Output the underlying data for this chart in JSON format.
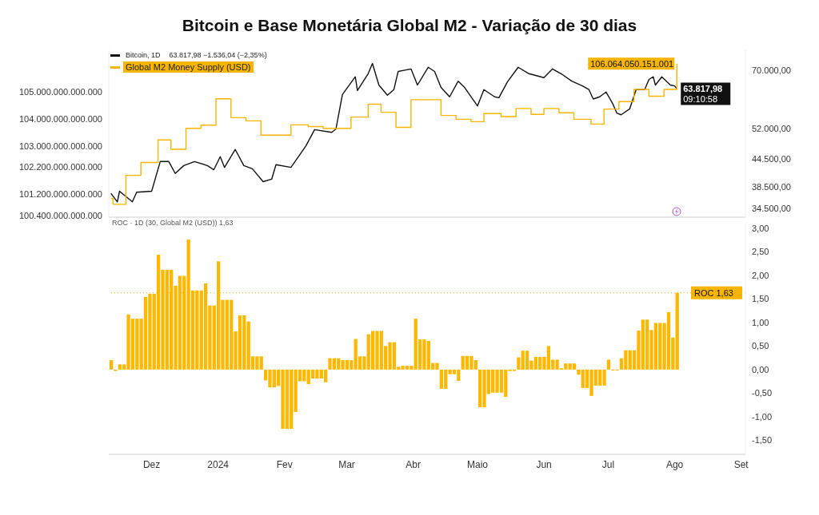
{
  "chart_data": [
    {
      "type": "line",
      "title": "Bitcoin e Base Monetária Global M2 - Variação de 30 dias",
      "annotations": [
        "63.817,98 −1.536,04 (−2,35%)",
        "09:10:58"
      ],
      "series": [
        {
          "name": "Bitcoin, 1D",
          "color": "#111111",
          "axis": "y2",
          "x": [
            "2023-11-12",
            "2023-11-15",
            "2023-11-16",
            "2023-11-22",
            "2023-11-24",
            "2023-12-01",
            "2023-12-05",
            "2023-12-09",
            "2023-12-12",
            "2023-12-16",
            "2023-12-21",
            "2023-12-27",
            "2023-12-30",
            "2024-01-02",
            "2024-01-04",
            "2024-01-09",
            "2024-01-13",
            "2024-01-17",
            "2024-01-22",
            "2024-01-26",
            "2024-01-28",
            "2024-02-04",
            "2024-02-11",
            "2024-02-15",
            "2024-02-23",
            "2024-02-25",
            "2024-02-28",
            "2024-03-05",
            "2024-03-06",
            "2024-03-11",
            "2024-03-13",
            "2024-03-16",
            "2024-03-20",
            "2024-03-23",
            "2024-03-25",
            "2024-03-31",
            "2024-04-03",
            "2024-04-08",
            "2024-04-11",
            "2024-04-14",
            "2024-04-18",
            "2024-04-22",
            "2024-04-25",
            "2024-05-01",
            "2024-05-04",
            "2024-05-09",
            "2024-05-11",
            "2024-05-15",
            "2024-05-20",
            "2024-05-25",
            "2024-06-01",
            "2024-06-05",
            "2024-06-09",
            "2024-06-14",
            "2024-06-19",
            "2024-06-22",
            "2024-06-24",
            "2024-06-27",
            "2024-06-30",
            "2024-07-03",
            "2024-07-05",
            "2024-07-07",
            "2024-07-11",
            "2024-07-14",
            "2024-07-18",
            "2024-07-20",
            "2024-07-22",
            "2024-07-23",
            "2024-07-26",
            "2024-07-30",
            "2024-08-01",
            "2024-08-02"
          ],
          "values": [
            37300,
            35700,
            37700,
            35700,
            37500,
            37700,
            43900,
            43900,
            41300,
            43000,
            43900,
            43000,
            42100,
            45000,
            42600,
            46700,
            43000,
            42300,
            39600,
            40100,
            43200,
            42600,
            47600,
            51700,
            51000,
            51900,
            61900,
            67800,
            63200,
            68900,
            72600,
            65000,
            61700,
            63500,
            69700,
            70600,
            65000,
            71200,
            69700,
            64200,
            61200,
            66300,
            64200,
            58400,
            63500,
            61200,
            60900,
            66100,
            71200,
            68900,
            67500,
            70600,
            68900,
            66300,
            64700,
            63500,
            60500,
            61200,
            62700,
            59200,
            56300,
            55800,
            57500,
            63500,
            63500,
            66900,
            67800,
            65000,
            67800,
            65000,
            64700,
            63817.98
          ],
          "value_labels": [
            null,
            null,
            null,
            null,
            null,
            null,
            null,
            null,
            null,
            null,
            null,
            null,
            null,
            null,
            null,
            null,
            null,
            null,
            null,
            null,
            null,
            null,
            null,
            null,
            null,
            null,
            null,
            null,
            null,
            null,
            null,
            null,
            null,
            null,
            null,
            null,
            null,
            null,
            null,
            null,
            null,
            null,
            null,
            null,
            null,
            null,
            null,
            null,
            null,
            null,
            null,
            null,
            null,
            null,
            null,
            null,
            null,
            null,
            null,
            null,
            null,
            null,
            null,
            null,
            null,
            null,
            null,
            null,
            null,
            null,
            null,
            "63.817,98"
          ]
        },
        {
          "name": "Global M2 Money Supply (USD)",
          "color": "#f7b500",
          "type": "step",
          "x": [
            "2023-11-12",
            "2023-11-13",
            "2023-11-19",
            "2023-11-26",
            "2023-12-04",
            "2023-12-10",
            "2023-12-17",
            "2023-12-24",
            "2023-12-31",
            "2024-01-07",
            "2024-01-14",
            "2024-01-21",
            "2024-02-04",
            "2024-02-12",
            "2024-02-19",
            "2024-03-03",
            "2024-03-11",
            "2024-03-17",
            "2024-03-24",
            "2024-03-31",
            "2024-04-14",
            "2024-04-21",
            "2024-04-28",
            "2024-05-04",
            "2024-05-12",
            "2024-05-19",
            "2024-05-26",
            "2024-06-01",
            "2024-06-08",
            "2024-06-15",
            "2024-06-23",
            "2024-06-29",
            "2024-07-06",
            "2024-07-13",
            "2024-07-20",
            "2024-07-27",
            "2024-08-02"
          ],
          "values": [
            101040000000000,
            100820000000000,
            101900000000000,
            102380000000000,
            103220000000000,
            102870000000000,
            103650000000000,
            103770000000000,
            104750000000000,
            104050000000000,
            103930000000000,
            103400000000000,
            103780000000000,
            103720000000000,
            103650000000000,
            104070000000000,
            104550000000000,
            104250000000000,
            103690000000000,
            104720000000000,
            104130000000000,
            103990000000000,
            103900000000000,
            104200000000000,
            104090000000000,
            104390000000000,
            104170000000000,
            104390000000000,
            104230000000000,
            103990000000000,
            103810000000000,
            104370000000000,
            104650000000000,
            105100000000000,
            104850000000000,
            105100000000000,
            106064050151001
          ],
          "value_labels": [
            null,
            null,
            null,
            null,
            null,
            null,
            null,
            null,
            null,
            null,
            null,
            null,
            null,
            null,
            null,
            null,
            null,
            null,
            null,
            null,
            null,
            null,
            null,
            null,
            null,
            null,
            null,
            null,
            null,
            null,
            null,
            null,
            null,
            null,
            null,
            null,
            "106.064.050.151.001"
          ]
        }
      ],
      "xlim": [
        "2023-11-11",
        "2024-09-03"
      ],
      "ylim": [
        100340000000000,
        106590000000000
      ],
      "yticks": [
        {
          "value": 100400000000000,
          "label": "100.400.000.000.000"
        },
        {
          "value": 101200000000000,
          "label": "101.200.000.000.000"
        },
        {
          "value": 102200000000000,
          "label": "102.200.000.000.000"
        },
        {
          "value": 103000000000000,
          "label": "103.000.000.000.000"
        },
        {
          "value": 104000000000000,
          "label": "104.000.000.000.000"
        },
        {
          "value": 105000000000000,
          "label": "105.000.000.000.000"
        }
      ],
      "y2lim": [
        33000,
        78000
      ],
      "y2ticks": [
        {
          "value": 34500,
          "label": "34.500,00"
        },
        {
          "value": 38500,
          "label": "38.500,00"
        },
        {
          "value": 44500,
          "label": "44.500,00"
        },
        {
          "value": 52000,
          "label": "52.000,00"
        },
        {
          "value": 70000,
          "label": "70.000,00"
        }
      ],
      "log": "y2",
      "legend": "top left",
      "tick_labels": "y"
    },
    {
      "type": "bar",
      "title": "ROC · 1D (30, Global M2 (USD)) 1,63",
      "x": [
        "2023-11-12",
        "2023-11-14",
        "2023-11-16",
        "2023-11-18",
        "2023-11-20",
        "2023-11-22",
        "2023-11-24",
        "2023-11-26",
        "2023-11-28",
        "2023-11-30",
        "2023-12-02",
        "2023-12-04",
        "2023-12-06",
        "2023-12-08",
        "2023-12-10",
        "2023-12-12",
        "2023-12-14",
        "2023-12-16",
        "2023-12-18",
        "2023-12-20",
        "2023-12-22",
        "2023-12-24",
        "2023-12-26",
        "2023-12-28",
        "2023-12-30",
        "2024-01-01",
        "2024-01-03",
        "2024-01-05",
        "2024-01-07",
        "2024-01-09",
        "2024-01-11",
        "2024-01-13",
        "2024-01-15",
        "2024-01-17",
        "2024-01-19",
        "2024-01-21",
        "2024-01-23",
        "2024-01-25",
        "2024-01-27",
        "2024-01-29",
        "2024-01-31",
        "2024-02-02",
        "2024-02-04",
        "2024-02-06",
        "2024-02-08",
        "2024-02-10",
        "2024-02-12",
        "2024-02-14",
        "2024-02-16",
        "2024-02-18",
        "2024-02-20",
        "2024-02-22",
        "2024-02-24",
        "2024-02-26",
        "2024-02-28",
        "2024-03-01",
        "2024-03-03",
        "2024-03-05",
        "2024-03-07",
        "2024-03-09",
        "2024-03-11",
        "2024-03-13",
        "2024-03-15",
        "2024-03-17",
        "2024-03-19",
        "2024-03-21",
        "2024-03-23",
        "2024-03-25",
        "2024-03-27",
        "2024-03-29",
        "2024-03-31",
        "2024-04-02",
        "2024-04-04",
        "2024-04-06",
        "2024-04-08",
        "2024-04-10",
        "2024-04-12",
        "2024-04-14",
        "2024-04-16",
        "2024-04-18",
        "2024-04-20",
        "2024-04-22",
        "2024-04-24",
        "2024-04-26",
        "2024-04-28",
        "2024-04-30",
        "2024-05-02",
        "2024-05-04",
        "2024-05-06",
        "2024-05-08",
        "2024-05-10",
        "2024-05-12",
        "2024-05-14",
        "2024-05-16",
        "2024-05-18",
        "2024-05-20",
        "2024-05-22",
        "2024-05-24",
        "2024-05-26",
        "2024-05-28",
        "2024-05-30",
        "2024-06-01",
        "2024-06-03",
        "2024-06-05",
        "2024-06-07",
        "2024-06-09",
        "2024-06-11",
        "2024-06-13",
        "2024-06-15",
        "2024-06-17",
        "2024-06-19",
        "2024-06-21",
        "2024-06-23",
        "2024-06-25",
        "2024-06-27",
        "2024-06-29",
        "2024-07-01",
        "2024-07-03",
        "2024-07-05",
        "2024-07-07",
        "2024-07-09",
        "2024-07-11",
        "2024-07-13",
        "2024-07-15",
        "2024-07-17",
        "2024-07-19",
        "2024-07-21",
        "2024-07-23",
        "2024-07-25",
        "2024-07-27",
        "2024-07-29",
        "2024-07-31",
        "2024-08-02"
      ],
      "series": [
        {
          "color": "#ffb800",
          "axis": "y2",
          "values": [
            0.2,
            -0.03,
            0.11,
            0.11,
            1.17,
            1.08,
            1.08,
            1.08,
            1.54,
            1.61,
            1.61,
            2.44,
            2.12,
            2.12,
            2.12,
            1.78,
            1.99,
            1.99,
            2.76,
            1.68,
            1.68,
            1.68,
            1.83,
            1.36,
            1.36,
            2.3,
            1.48,
            1.48,
            1.48,
            0.81,
            1.15,
            1.15,
            1.02,
            0.28,
            0.28,
            0.28,
            -0.23,
            -0.38,
            -0.38,
            -0.35,
            -1.26,
            -1.26,
            -1.26,
            -0.9,
            -0.25,
            -0.25,
            -0.31,
            -0.19,
            -0.19,
            -0.19,
            -0.27,
            0.24,
            0.24,
            0.24,
            0.2,
            0.2,
            0.2,
            0.65,
            0.28,
            0.28,
            0.75,
            0.82,
            0.82,
            0.82,
            0.5,
            0.58,
            0.58,
            0.06,
            0.08,
            0.08,
            0.08,
            1.08,
            0.64,
            0.64,
            0.61,
            0.14,
            0.14,
            -0.41,
            -0.41,
            -0.1,
            -0.1,
            -0.24,
            0.29,
            0.29,
            0.29,
            0.2,
            -0.8,
            -0.8,
            -0.52,
            -0.49,
            -0.49,
            -0.49,
            -0.58,
            -0.03,
            -0.03,
            0.26,
            0.4,
            0.4,
            0.19,
            0.27,
            0.27,
            0.27,
            0.5,
            0.21,
            0.21,
            0.03,
            0.13,
            0.13,
            0.13,
            -0.11,
            -0.39,
            -0.39,
            -0.56,
            -0.34,
            -0.34,
            -0.34,
            0.21,
            -0.02,
            -0.02,
            0.24,
            0.41,
            0.41,
            0.41,
            0.83,
            1.06,
            1.06,
            0.84,
            0.99,
            0.99,
            0.99,
            1.22,
            0.68,
            1.63
          ]
        }
      ],
      "xlim": [
        "2023-11-11",
        "2024-09-03"
      ],
      "xticks": [
        {
          "value": "2023-12-01",
          "label": "Dez"
        },
        {
          "value": "2024-01-01",
          "label": "2024"
        },
        {
          "value": "2024-02-01",
          "label": "Fev"
        },
        {
          "value": "2024-03-01",
          "label": "Mar"
        },
        {
          "value": "2024-04-01",
          "label": "Abr"
        },
        {
          "value": "2024-05-01",
          "label": "Maio"
        },
        {
          "value": "2024-06-01",
          "label": "Jun"
        },
        {
          "value": "2024-07-01",
          "label": "Jul"
        },
        {
          "value": "2024-08-01",
          "label": "Ago"
        },
        {
          "value": "2024-09-01",
          "label": "Set"
        }
      ],
      "y2lim": [
        -1.8,
        3.1
      ],
      "y2ticks": [
        {
          "value": -1.5,
          "label": "-1,50"
        },
        {
          "value": -1,
          "label": "-1,00"
        },
        {
          "value": -0.5,
          "label": "-0,50"
        },
        {
          "value": 0,
          "label": "0,00"
        },
        {
          "value": 0.5,
          "label": "0,50"
        },
        {
          "value": 1,
          "label": "1,00"
        },
        {
          "value": 1.5,
          "label": "1,50"
        },
        {
          "value": 2,
          "label": "2,00"
        },
        {
          "value": 2.5,
          "label": "2,50"
        },
        {
          "value": 3,
          "label": "3,00"
        }
      ],
      "ref_lines": [
        {
          "axis": "y2",
          "value": 1.63,
          "label": "ROC 1,63",
          "color": "#f7b500",
          "line_style": "dotted"
        }
      ]
    }
  ]
}
